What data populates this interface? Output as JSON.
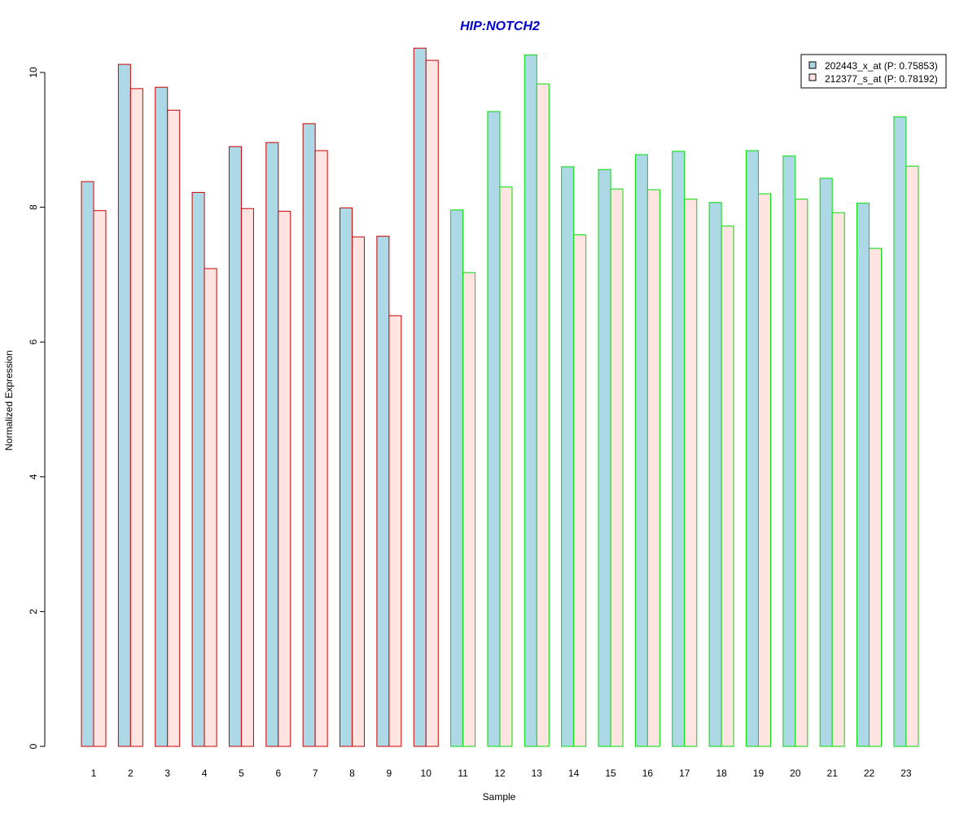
{
  "colors": {
    "title": "#0000CC",
    "series1_fill": "#ADD8E6",
    "series2_fill": "#FFE4E1",
    "group_a_border": "#CC0000",
    "group_b_border": "#00DD00",
    "axis": "#000000"
  },
  "chart_data": {
    "type": "bar",
    "title": "HIP:NOTCH2",
    "xlabel": "Sample",
    "ylabel": "Normalized Expression",
    "ylim": [
      0,
      10
    ],
    "yticks": [
      "0",
      "2",
      "4",
      "6",
      "8",
      "10"
    ],
    "grid": false,
    "legend_position": "top-right",
    "categories": [
      "1",
      "2",
      "3",
      "4",
      "5",
      "6",
      "7",
      "8",
      "9",
      "10",
      "11",
      "12",
      "13",
      "14",
      "15",
      "16",
      "17",
      "18",
      "19",
      "20",
      "21",
      "22",
      "23"
    ],
    "border_groups": [
      "a",
      "a",
      "a",
      "a",
      "a",
      "a",
      "a",
      "a",
      "a",
      "a",
      "b",
      "b",
      "b",
      "b",
      "b",
      "b",
      "b",
      "b",
      "b",
      "b",
      "b",
      "b",
      "b"
    ],
    "series": [
      {
        "name": "202443_x_at (P: 0.75853)",
        "values": [
          8.38,
          10.12,
          9.78,
          8.22,
          8.9,
          8.96,
          9.24,
          7.99,
          7.57,
          10.36,
          7.96,
          9.42,
          10.26,
          8.6,
          8.56,
          8.78,
          8.83,
          8.07,
          8.84,
          8.76,
          8.43,
          8.06,
          9.34
        ]
      },
      {
        "name": "212377_s_at (P: 0.78192)",
        "values": [
          7.95,
          9.76,
          9.44,
          7.09,
          7.98,
          7.94,
          8.84,
          7.56,
          6.39,
          10.18,
          7.03,
          8.3,
          9.83,
          7.59,
          8.27,
          8.26,
          8.12,
          7.72,
          8.2,
          8.12,
          7.92,
          7.39,
          8.61
        ]
      }
    ]
  }
}
